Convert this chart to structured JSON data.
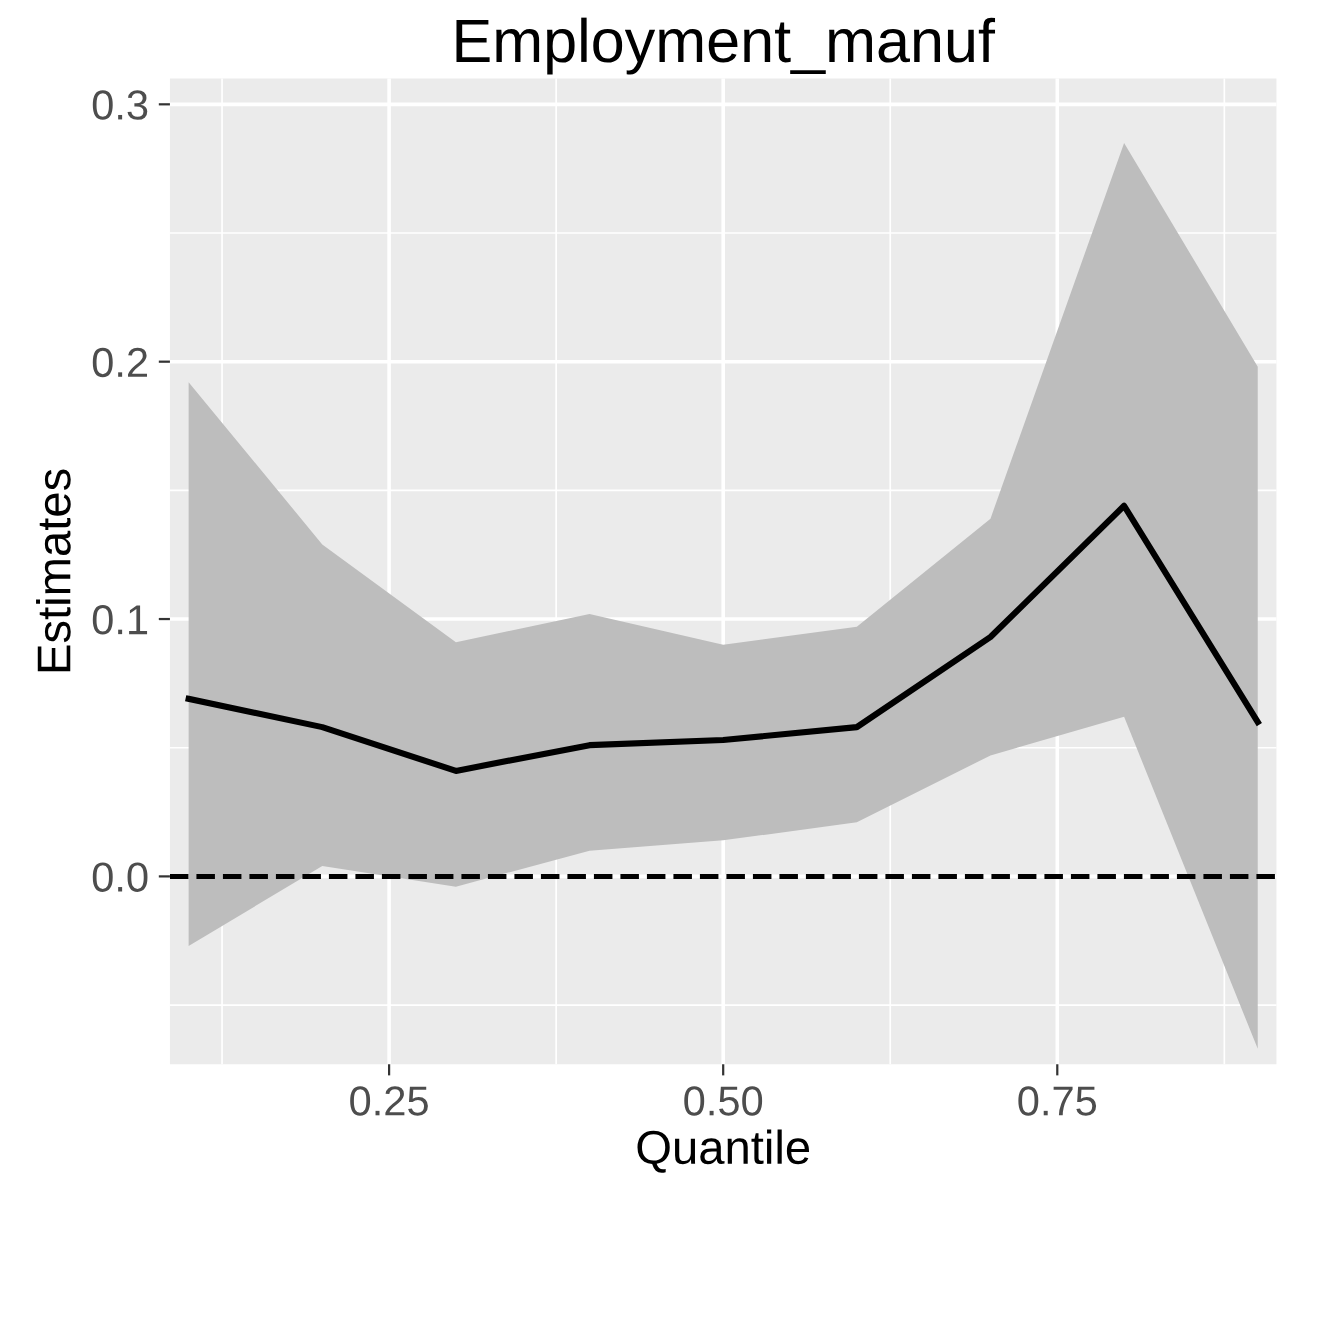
{
  "chart_data": {
    "type": "line",
    "title": "Employment_manuf",
    "xlabel": "Quantile",
    "ylabel": "Estimates",
    "x": [
      0.1,
      0.2,
      0.3,
      0.4,
      0.5,
      0.6,
      0.7,
      0.8,
      0.9
    ],
    "series": [
      {
        "color": "#000000",
        "values": [
          0.069,
          0.058,
          0.041,
          0.051,
          0.053,
          0.058,
          0.093,
          0.144,
          0.06
        ],
        "lower": [
          -0.027,
          0.004,
          -0.004,
          0.01,
          0.014,
          0.021,
          0.047,
          0.062,
          -0.067
        ],
        "upper": [
          0.192,
          0.129,
          0.091,
          0.102,
          0.09,
          0.097,
          0.139,
          0.285,
          0.198
        ]
      }
    ],
    "xlim": [
      0.086,
      0.914
    ],
    "ylim": [
      -0.073,
      0.31
    ],
    "xticks": [
      {
        "value": 0.25,
        "label": "0.25"
      },
      {
        "value": 0.5,
        "label": "0.50"
      },
      {
        "value": 0.75,
        "label": "0.75"
      }
    ],
    "yticks": [
      {
        "value": 0.0,
        "label": "0.0"
      },
      {
        "value": 0.1,
        "label": "0.1"
      },
      {
        "value": 0.2,
        "label": "0.2"
      },
      {
        "value": 0.3,
        "label": "0.3"
      }
    ],
    "ref_lines": [
      {
        "axis": "y",
        "value": 0,
        "color": "#000000",
        "line_style": "dashed"
      }
    ],
    "grid": true,
    "line_style": "solid"
  }
}
